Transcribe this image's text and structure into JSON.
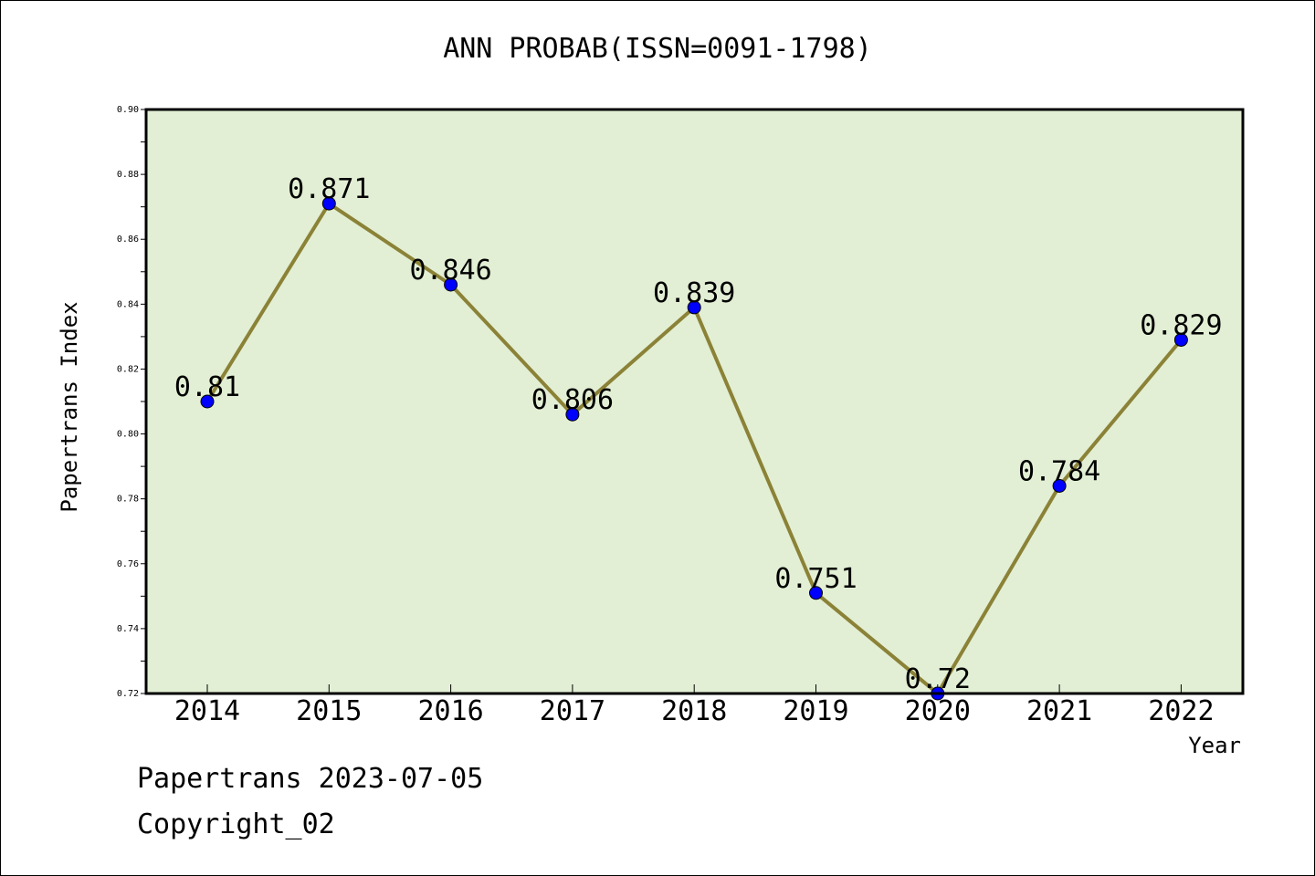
{
  "chart_data": {
    "type": "line",
    "title": "ANN PROBAB(ISSN=0091-1798)",
    "xlabel": "Year",
    "ylabel": "Papertrans Index",
    "categories": [
      "2014",
      "2015",
      "2016",
      "2017",
      "2018",
      "2019",
      "2020",
      "2021",
      "2022"
    ],
    "series": [
      {
        "values": [
          0.81,
          0.871,
          0.846,
          0.806,
          0.839,
          0.751,
          0.72,
          0.784,
          0.829
        ]
      }
    ],
    "data_labels": [
      "0.81",
      "0.871",
      "0.846",
      "0.806",
      "0.839",
      "0.751",
      "0.72",
      "0.784",
      "0.829"
    ],
    "ylim": [
      0.72,
      0.9
    ],
    "yticks": [
      "0.72",
      "0.74",
      "0.76",
      "0.78",
      "0.80",
      "0.82",
      "0.84",
      "0.86",
      "0.88",
      "0.90"
    ],
    "grid": false,
    "colors": {
      "plot_background": "#e2efd4",
      "line": "#8b8237",
      "marker": "#0000ff"
    }
  },
  "footer": {
    "date_line": "Papertrans 2023-07-05",
    "copyright_line": "Copyright_02"
  }
}
